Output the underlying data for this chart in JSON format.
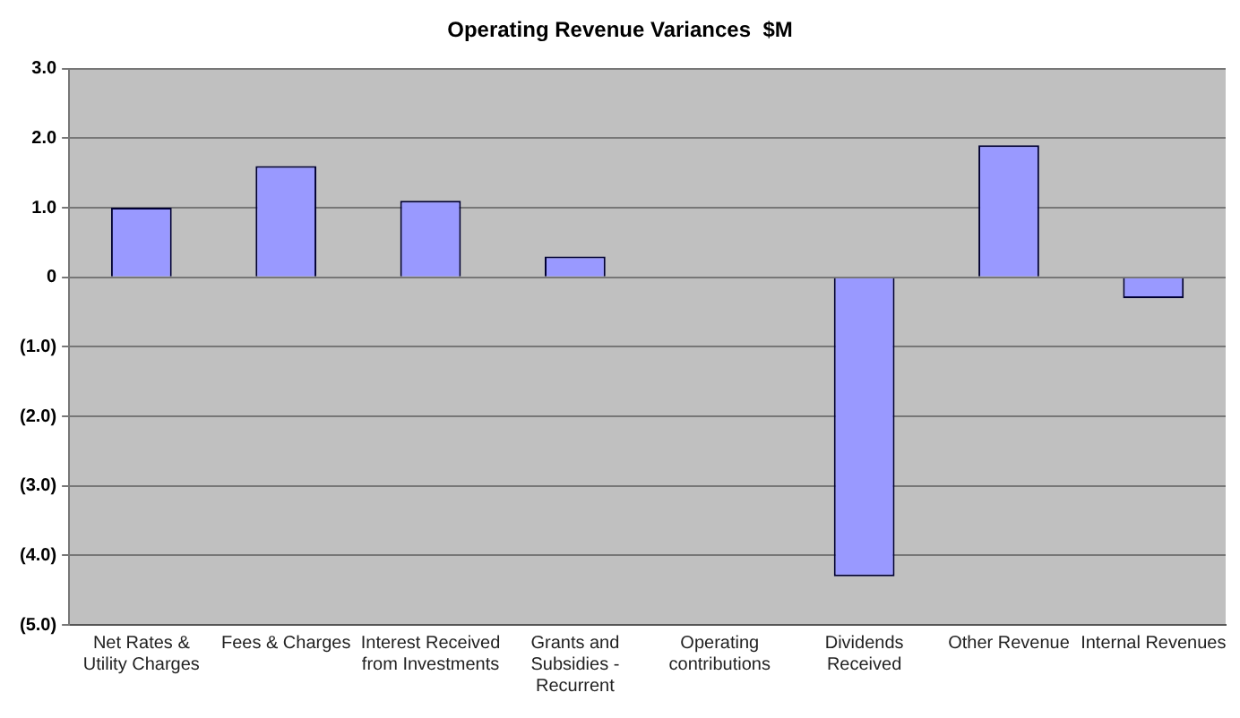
{
  "chart_data": {
    "type": "bar",
    "title": "Operating Revenue Variances  $M",
    "categories": [
      "Net Rates & Utility Charges",
      "Fees & Charges",
      "Interest Received from Investments",
      "Grants and Subsidies - Recurrent",
      "Operating contributions",
      "Dividends Received",
      "Other Revenue",
      "Internal Revenues"
    ],
    "values": [
      1.0,
      1.6,
      1.1,
      0.3,
      0.0,
      -4.3,
      1.9,
      -0.3
    ],
    "color": "#9999ff",
    "ylim": [
      -5,
      3
    ],
    "yticks": [
      {
        "value": 3,
        "label": "3.0"
      },
      {
        "value": 2,
        "label": "2.0"
      },
      {
        "value": 1,
        "label": "1.0"
      },
      {
        "value": 0,
        "label": "0"
      },
      {
        "value": -1,
        "label": "(1.0)"
      },
      {
        "value": -2,
        "label": "(2.0)"
      },
      {
        "value": -3,
        "label": "(3.0)"
      },
      {
        "value": -4,
        "label": "(4.0)"
      },
      {
        "value": -5,
        "label": "(5.0)"
      }
    ],
    "grid": "y",
    "legend": false
  }
}
